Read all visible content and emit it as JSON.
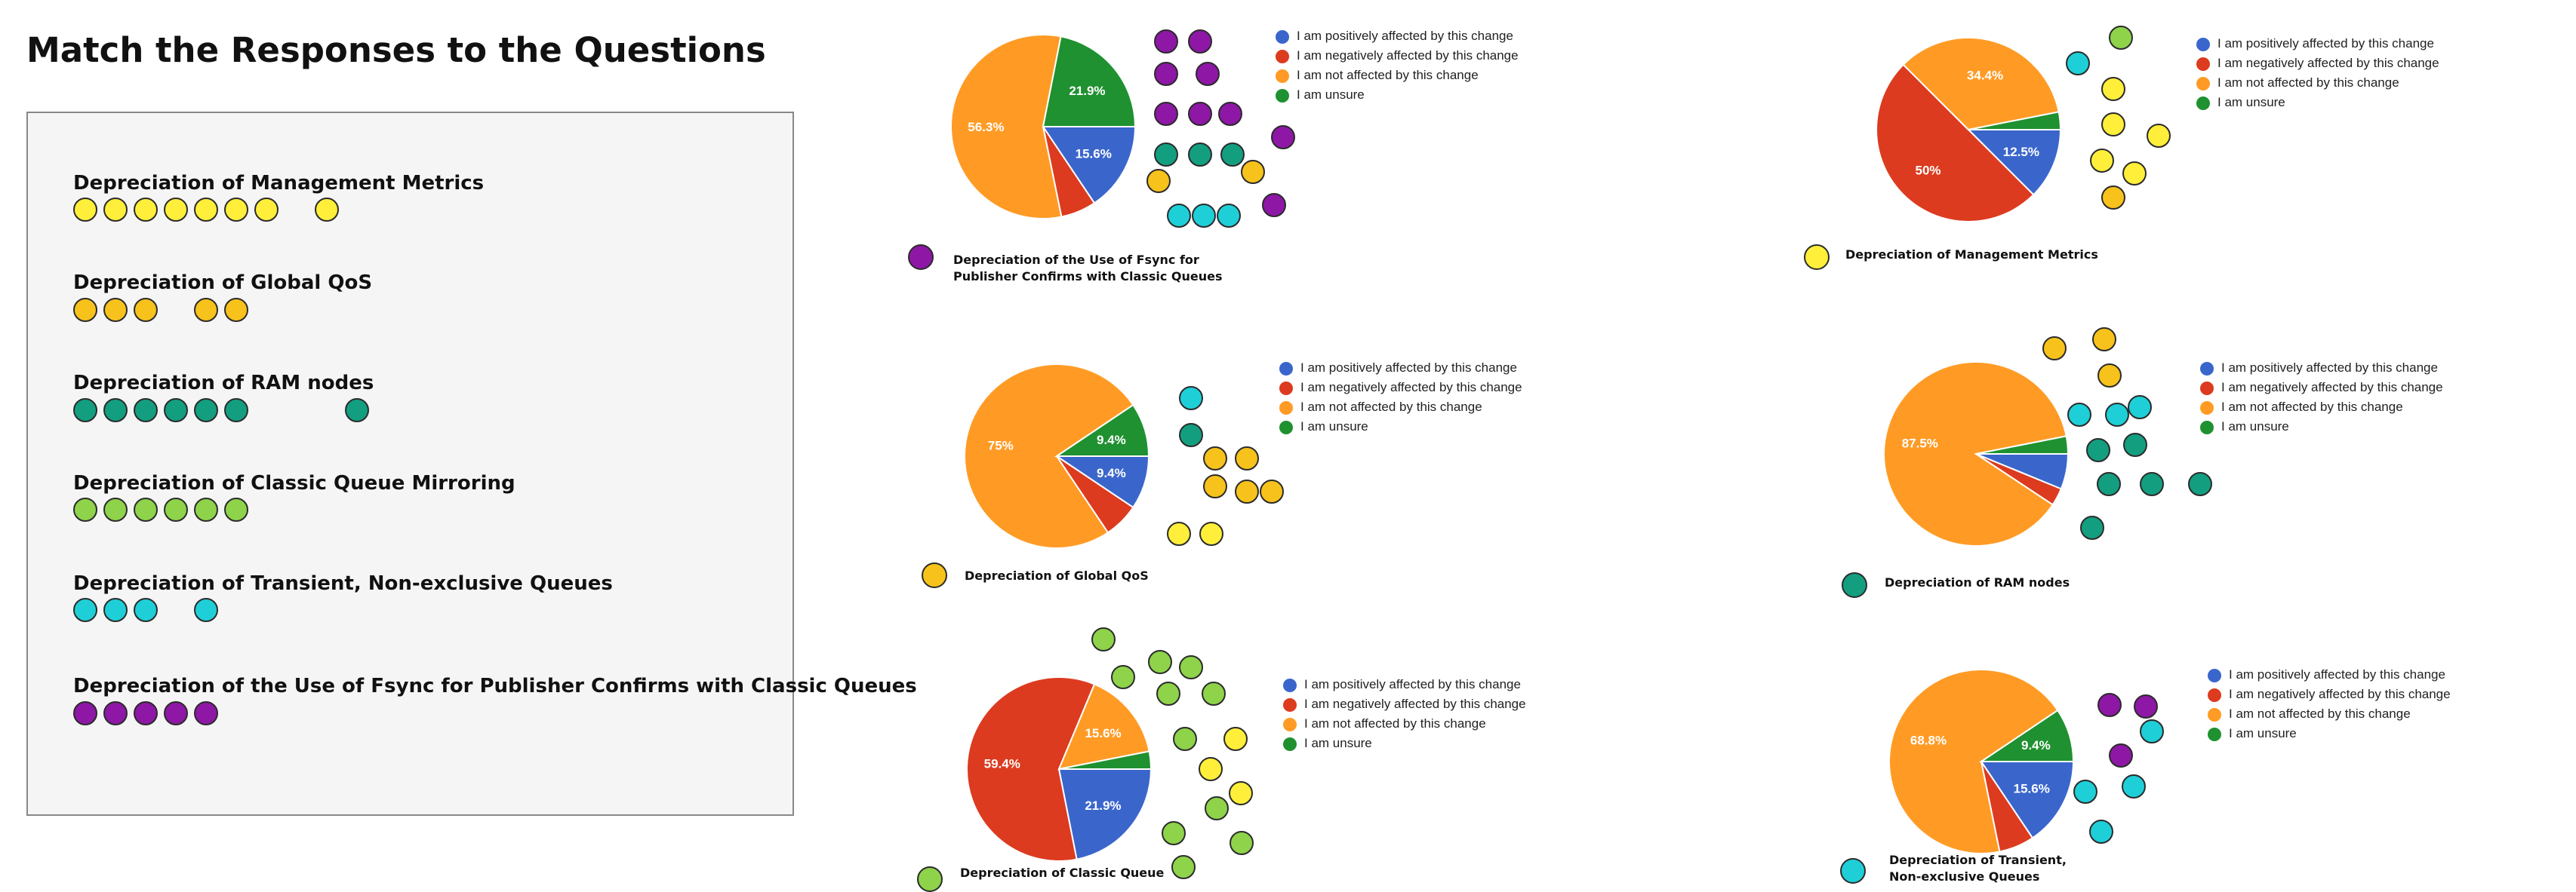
{
  "title": "Match the Responses to the Questions",
  "colors": {
    "purple": "#8e17a6",
    "yellow": "#ffef3a",
    "gold": "#f7c21b",
    "teal": "#139e80",
    "lime": "#8ed34a",
    "cyan": "#1ecfd8",
    "positive": "#3a66cc",
    "negative": "#dc3b1f",
    "not_affected": "#ff9b25",
    "unsure": "#1f9130"
  },
  "questions": [
    {
      "label": "Depreciation of Management Metrics",
      "color": "yellow",
      "dots": [
        0,
        1,
        2,
        3,
        4,
        5,
        6,
        8
      ]
    },
    {
      "label": "Depreciation of Global QoS",
      "color": "gold",
      "dots": [
        0,
        1,
        2,
        4,
        5
      ]
    },
    {
      "label": "Depreciation of RAM nodes",
      "color": "teal",
      "dots": [
        0,
        1,
        2,
        3,
        4,
        5,
        9
      ]
    },
    {
      "label": "Depreciation of Classic Queue Mirroring",
      "color": "lime",
      "dots": [
        0,
        1,
        2,
        3,
        4,
        5
      ]
    },
    {
      "label": "Depreciation of Transient, Non-exclusive Queues",
      "color": "cyan",
      "dots": [
        0,
        1,
        2,
        4
      ]
    },
    {
      "label": "Depreciation of the Use of Fsync for Publisher Confirms with Classic Queues",
      "color": "purple",
      "dots": [
        0,
        1,
        2,
        3,
        4
      ]
    }
  ],
  "legend": [
    "I am positively affected by this change",
    "I am negatively affected by this change",
    "I am not affected by this change",
    "I am unsure"
  ],
  "chart_data": [
    {
      "type": "pie",
      "title": "Depreciation of the Use of Fsync for Publisher Confirms with Classic Queues",
      "caption_lines": [
        "Depreciation of the Use of Fsync for",
        "Publisher Confirms with Classic Queues"
      ],
      "caption_color": "purple",
      "categories": [
        "I am positively affected by this change",
        "I am negatively affected by this change",
        "I am not affected by this change",
        "I am unsure"
      ],
      "values": [
        15.6,
        6.2,
        56.3,
        21.9
      ],
      "labels": [
        "15.6%",
        "",
        "56.3%",
        "21.9%"
      ],
      "legend_position": "right",
      "distractor_dots": [
        "purple",
        "purple",
        "purple",
        "purple",
        "purple",
        "purple",
        "purple",
        "purple",
        "teal",
        "teal",
        "teal",
        "gold",
        "gold",
        "cyan",
        "cyan",
        "cyan",
        "purple"
      ]
    },
    {
      "type": "pie",
      "title": "Depreciation of Management Metrics",
      "caption_lines": [
        "Depreciation of Management Metrics"
      ],
      "caption_color": "yellow",
      "categories": [
        "I am positively affected by this change",
        "I am negatively affected by this change",
        "I am not affected by this change",
        "I am unsure"
      ],
      "values": [
        12.5,
        50,
        34.4,
        3.1
      ],
      "labels": [
        "12.5%",
        "50%",
        "34.4%",
        ""
      ],
      "legend_position": "right",
      "distractor_dots": [
        "lime",
        "cyan",
        "yellow",
        "yellow",
        "yellow",
        "yellow",
        "yellow",
        "gold"
      ]
    },
    {
      "type": "pie",
      "title": "Depreciation of Global QoS",
      "caption_lines": [
        "Depreciation of Global QoS"
      ],
      "caption_color": "gold",
      "categories": [
        "I am positively affected by this change",
        "I am negatively affected by this change",
        "I am not affected by this change",
        "I am unsure"
      ],
      "values": [
        9.4,
        6.2,
        75,
        9.4
      ],
      "labels": [
        "9.4%",
        "",
        "75%",
        "9.4%"
      ],
      "legend_position": "right",
      "distractor_dots": [
        "cyan",
        "teal",
        "gold",
        "gold",
        "gold",
        "gold",
        "gold",
        "yellow",
        "yellow"
      ]
    },
    {
      "type": "pie",
      "title": "Depreciation of RAM nodes",
      "caption_lines": [
        "Depreciation of RAM nodes"
      ],
      "caption_color": "teal",
      "categories": [
        "I am positively affected by this change",
        "I am negatively affected by this change",
        "I am not affected by this change",
        "I am unsure"
      ],
      "values": [
        6.2,
        3.1,
        87.5,
        3.1
      ],
      "labels": [
        "",
        "",
        "87.5%",
        ""
      ],
      "legend_position": "right",
      "distractor_dots": [
        "gold",
        "gold",
        "gold",
        "cyan",
        "cyan",
        "cyan",
        "teal",
        "teal",
        "teal",
        "teal",
        "teal",
        "teal"
      ]
    },
    {
      "type": "pie",
      "title": "Depreciation of Classic Queue Mirroring",
      "caption_lines": [
        "Depreciation of Classic Queue"
      ],
      "caption_color": "lime",
      "categories": [
        "I am positively affected by this change",
        "I am negatively affected by this change",
        "I am not affected by this change",
        "I am unsure"
      ],
      "values": [
        21.9,
        59.4,
        15.6,
        3.1
      ],
      "labels": [
        "21.9%",
        "59.4%",
        "15.6%",
        ""
      ],
      "legend_position": "right",
      "distractor_dots": [
        "lime",
        "lime",
        "lime",
        "lime",
        "lime",
        "lime",
        "lime",
        "yellow",
        "yellow",
        "yellow",
        "lime",
        "lime",
        "lime",
        "lime"
      ]
    },
    {
      "type": "pie",
      "title": "Depreciation of Transient, Non-exclusive Queues",
      "caption_lines": [
        "Depreciation of Transient,",
        "Non-exclusive Queues"
      ],
      "caption_color": "cyan",
      "categories": [
        "I am positively affected by this change",
        "I am negatively affected by this change",
        "I am not affected by this change",
        "I am unsure"
      ],
      "values": [
        15.6,
        6.2,
        68.8,
        9.4
      ],
      "labels": [
        "15.6%",
        "",
        "68.8%",
        "9.4%"
      ],
      "legend_position": "right",
      "distractor_dots": [
        "purple",
        "purple",
        "cyan",
        "purple",
        "cyan",
        "cyan",
        "cyan"
      ]
    }
  ]
}
